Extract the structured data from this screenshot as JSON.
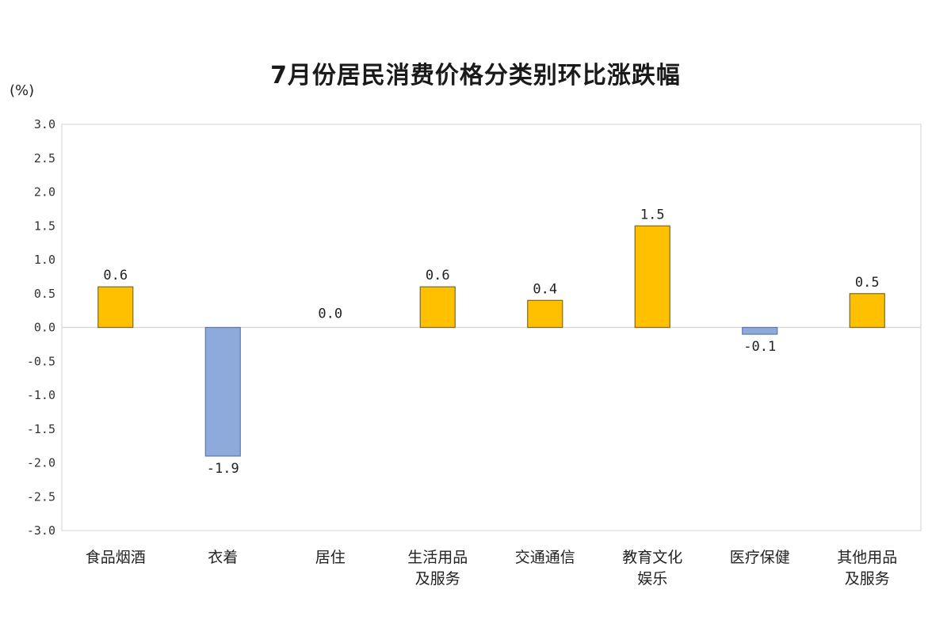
{
  "chart_data": {
    "type": "bar",
    "title": "7月份居民消费价格分类别环比涨跌幅",
    "unit_label": "(%)",
    "categories": [
      [
        "食品烟酒"
      ],
      [
        "衣着"
      ],
      [
        "居住"
      ],
      [
        "生活用品",
        "及服务"
      ],
      [
        "交通通信"
      ],
      [
        "教育文化",
        "娱乐"
      ],
      [
        "医疗保健"
      ],
      [
        "其他用品",
        "及服务"
      ]
    ],
    "values": [
      0.6,
      -1.9,
      0.0,
      0.6,
      0.4,
      1.5,
      -0.1,
      0.5
    ],
    "value_labels": [
      "0.6",
      "-1.9",
      "0.0",
      "0.6",
      "0.4",
      "1.5",
      "-0.1",
      "0.5"
    ],
    "ylim": [
      -3.0,
      3.0
    ],
    "yticks": [
      "3.0",
      "2.5",
      "2.0",
      "1.5",
      "1.0",
      "0.5",
      "0.0",
      "-0.5",
      "-1.0",
      "-1.5",
      "-2.0",
      "-2.5",
      "-3.0"
    ],
    "ytick_values": [
      3.0,
      2.5,
      2.0,
      1.5,
      1.0,
      0.5,
      0.0,
      -0.5,
      -1.0,
      -1.5,
      -2.0,
      -2.5,
      -3.0
    ],
    "grid": false,
    "colors": {
      "positive": "#FFC000",
      "negative": "#8EA9DB",
      "bar_stroke": "#7a6a2a",
      "neg_stroke": "#5b7ab0",
      "axis": "#d9d9d9"
    }
  }
}
